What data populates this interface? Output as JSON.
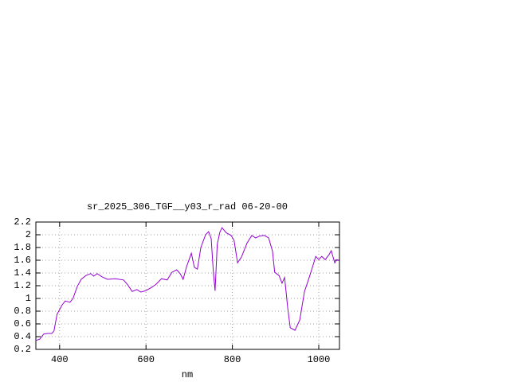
{
  "chart_data": {
    "type": "line",
    "title": "sr_2025_306_TGF__y03_r_rad 06-20-00",
    "x_label": "nm",
    "x": [
      345,
      354,
      363,
      372,
      382,
      387,
      394,
      406,
      413,
      424,
      431,
      441,
      450,
      461,
      472,
      479,
      487,
      498,
      511,
      529,
      548,
      557,
      568,
      579,
      588,
      599,
      612,
      623,
      636,
      649,
      660,
      671,
      679,
      686,
      694,
      705,
      712,
      719,
      727,
      738,
      745,
      751,
      756,
      760,
      765,
      771,
      776,
      786,
      797,
      804,
      812,
      821,
      834,
      845,
      854,
      863,
      874,
      884,
      893,
      898,
      908,
      915,
      921,
      928,
      934,
      945,
      956,
      967,
      976,
      985,
      993,
      1000,
      1007,
      1015,
      1024,
      1029,
      1037,
      1042,
      1048
    ],
    "series": [
      {
        "color": "#9400d3",
        "values": [
          0.34,
          0.36,
          0.44,
          0.45,
          0.45,
          0.49,
          0.75,
          0.9,
          0.96,
          0.94,
          1.0,
          1.19,
          1.3,
          1.36,
          1.39,
          1.35,
          1.39,
          1.34,
          1.3,
          1.31,
          1.29,
          1.22,
          1.11,
          1.14,
          1.1,
          1.12,
          1.17,
          1.22,
          1.31,
          1.29,
          1.41,
          1.45,
          1.39,
          1.3,
          1.5,
          1.71,
          1.49,
          1.46,
          1.8,
          2.0,
          2.05,
          1.94,
          1.41,
          1.12,
          1.85,
          2.04,
          2.11,
          2.03,
          1.99,
          1.91,
          1.56,
          1.65,
          1.87,
          1.99,
          1.95,
          1.98,
          1.99,
          1.95,
          1.74,
          1.41,
          1.36,
          1.24,
          1.33,
          0.86,
          0.54,
          0.5,
          0.66,
          1.11,
          1.29,
          1.48,
          1.66,
          1.61,
          1.66,
          1.61,
          1.69,
          1.75,
          1.56,
          1.61,
          1.59
        ]
      }
    ],
    "xlim": [
      345,
      1048
    ],
    "xticks": [
      400,
      600,
      800,
      1000
    ],
    "ylim": [
      0.2,
      2.2
    ],
    "yticks": [
      0.2,
      0.4,
      0.6,
      0.8,
      1,
      1.2,
      1.4,
      1.6,
      1.8,
      2,
      2.2
    ],
    "grid": true
  }
}
